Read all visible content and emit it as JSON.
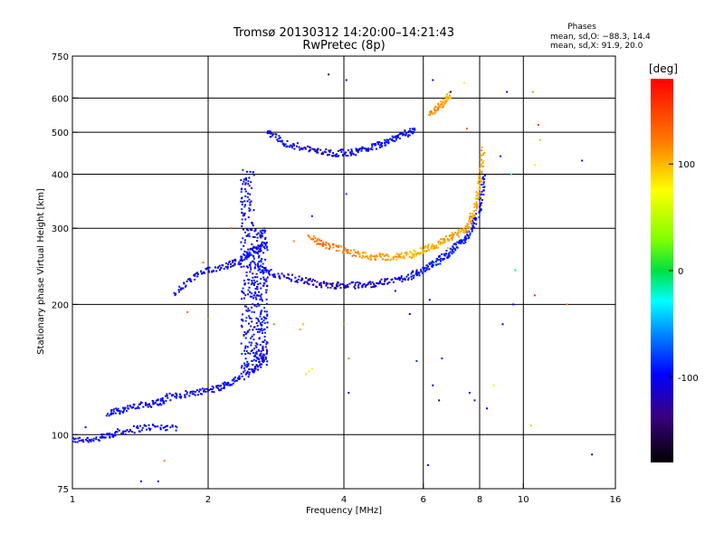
{
  "chart_data": {
    "type": "scatter",
    "title": "Tromsø 20130312 14:20:00–14:21:43",
    "subtitle": "RwPretec (8p)",
    "xlabel": "Frequency [MHz]",
    "ylabel": "Stationary phase Virtual Height [km]",
    "x_scale": "log",
    "y_scale": "log",
    "xlim": [
      1,
      16
    ],
    "ylim": [
      75,
      750
    ],
    "x_ticks": [
      1,
      2,
      4,
      6,
      8,
      10,
      16
    ],
    "x_tick_labels": [
      "1",
      "2",
      "4",
      "6",
      "8",
      "10",
      "16"
    ],
    "y_ticks": [
      75,
      100,
      200,
      300,
      400,
      500,
      600,
      750
    ],
    "y_tick_labels": [
      "75",
      "100",
      "200",
      "300",
      "400",
      "500",
      "600",
      "750"
    ],
    "grid_x": [
      2,
      4,
      6,
      8,
      10
    ],
    "grid_y": [
      100,
      200,
      300,
      400,
      500,
      600
    ],
    "stats": {
      "heading": "Phases",
      "line_o": "mean, sd,O: −88.3, 14.4",
      "line_x": "mean, sd,X:  91.9, 20.0"
    },
    "colorbar": {
      "label": "[deg]",
      "min": -180,
      "max": 180,
      "ticks": [
        100,
        0,
        -100
      ],
      "tick_labels": [
        "100",
        "0",
        "-100"
      ]
    },
    "traces": [
      {
        "seg": [
          [
            1.0,
            97,
            -110
          ],
          [
            1.15,
            98,
            -100
          ],
          [
            1.25,
            101,
            -105
          ],
          [
            1.45,
            104,
            -100
          ],
          [
            1.72,
            104,
            -95
          ]
        ]
      },
      {
        "seg": [
          [
            1.2,
            112,
            -100
          ],
          [
            1.32,
            115,
            -95
          ],
          [
            1.5,
            118,
            -100
          ],
          [
            1.62,
            120,
            -95
          ]
        ]
      },
      {
        "seg": [
          [
            1.62,
            122,
            -105
          ],
          [
            1.85,
            125,
            -100
          ],
          [
            2.1,
            128,
            -100
          ],
          [
            2.25,
            132,
            -95
          ],
          [
            2.5,
            140,
            -100
          ],
          [
            2.7,
            150,
            -95
          ]
        ]
      },
      {
        "seg": [
          [
            1.68,
            212,
            -100
          ],
          [
            1.9,
            235,
            -95
          ],
          [
            2.15,
            245,
            -105
          ],
          [
            2.35,
            252,
            -100
          ],
          [
            2.5,
            265,
            -95
          ],
          [
            2.7,
            275,
            -100
          ]
        ]
      },
      {
        "seg": [
          [
            2.5,
            248,
            -95
          ],
          [
            2.8,
            235,
            -100
          ],
          [
            3.2,
            228,
            -110
          ],
          [
            3.6,
            222,
            -120
          ],
          [
            4.0,
            221,
            -120
          ],
          [
            4.5,
            222,
            -110
          ],
          [
            5.0,
            226,
            -105
          ],
          [
            5.6,
            232,
            -100
          ],
          [
            6.0,
            240,
            -95
          ],
          [
            6.4,
            250,
            -90
          ],
          [
            6.8,
            262,
            -90
          ],
          [
            7.2,
            275,
            -95
          ],
          [
            7.6,
            292,
            -95
          ],
          [
            8.0,
            330,
            -100
          ],
          [
            8.2,
            400,
            -95
          ]
        ]
      },
      {
        "seg": [
          [
            3.35,
            285,
            120
          ],
          [
            3.7,
            273,
            130
          ],
          [
            4.1,
            264,
            120
          ],
          [
            4.6,
            258,
            110
          ],
          [
            5.1,
            257,
            110
          ],
          [
            5.6,
            260,
            100
          ],
          [
            6.0,
            267,
            100
          ],
          [
            6.5,
            276,
            105
          ],
          [
            7.0,
            288,
            110
          ],
          [
            7.5,
            300,
            105
          ],
          [
            7.8,
            330,
            110
          ],
          [
            8.0,
            380,
            100
          ],
          [
            8.15,
            460,
            110
          ]
        ]
      },
      {
        "seg": [
          [
            2.7,
            500,
            -100
          ],
          [
            3.0,
            470,
            -105
          ],
          [
            3.4,
            455,
            -110
          ],
          [
            3.8,
            447,
            -110
          ],
          [
            4.2,
            450,
            -105
          ],
          [
            4.6,
            462,
            -100
          ],
          [
            5.0,
            478,
            -95
          ],
          [
            5.4,
            492,
            -95
          ],
          [
            5.8,
            508,
            -90
          ]
        ]
      },
      {
        "seg": [
          [
            6.2,
            550,
            120
          ],
          [
            6.6,
            580,
            110
          ],
          [
            6.9,
            610,
            100
          ]
        ]
      }
    ],
    "clusters": [
      {
        "x": 2.45,
        "y0": 140,
        "y1": 410,
        "phase": -100
      },
      {
        "x": 2.62,
        "y0": 145,
        "y1": 300,
        "phase": -100
      }
    ],
    "scatter": [
      [
        3.7,
        680,
        -120
      ],
      [
        4.05,
        660,
        -110
      ],
      [
        6.3,
        660,
        -100
      ],
      [
        7.4,
        650,
        80
      ],
      [
        6.9,
        620,
        -100
      ],
      [
        10.5,
        620,
        120
      ],
      [
        10.8,
        520,
        150
      ],
      [
        10.9,
        480,
        30
      ],
      [
        9.4,
        400,
        -30
      ],
      [
        4.05,
        360,
        -80
      ],
      [
        3.4,
        320,
        -90
      ],
      [
        3.1,
        280,
        120
      ],
      [
        9.6,
        240,
        -20
      ],
      [
        10.6,
        210,
        160
      ],
      [
        12.5,
        200,
        120
      ],
      [
        4.0,
        180,
        120
      ],
      [
        3.2,
        175,
        110
      ],
      [
        3.25,
        180,
        100
      ],
      [
        3.35,
        140,
        80
      ],
      [
        3.4,
        142,
        70
      ],
      [
        3.3,
        138,
        90
      ],
      [
        6.2,
        205,
        -110
      ],
      [
        6.6,
        150,
        -90
      ],
      [
        6.3,
        130,
        -100
      ],
      [
        5.8,
        148,
        -80
      ],
      [
        4.1,
        125,
        -110
      ],
      [
        6.5,
        120,
        -120
      ],
      [
        7.6,
        125,
        -110
      ],
      [
        7.8,
        120,
        -110
      ],
      [
        8.3,
        115,
        -100
      ],
      [
        8.6,
        130,
        60
      ],
      [
        9.0,
        180,
        -100
      ],
      [
        9.5,
        200,
        -100
      ],
      [
        6.15,
        85,
        -110
      ],
      [
        1.42,
        78,
        -100
      ],
      [
        1.55,
        78,
        -90
      ],
      [
        1.6,
        87,
        120
      ],
      [
        10.4,
        105,
        30
      ],
      [
        14.2,
        90,
        -110
      ],
      [
        13.5,
        430,
        -100
      ],
      [
        1.8,
        192,
        130
      ],
      [
        2.0,
        185,
        120
      ],
      [
        1.95,
        250,
        130
      ],
      [
        2.25,
        300,
        140
      ],
      [
        2.8,
        180,
        120
      ],
      [
        4.4,
        220,
        -110
      ],
      [
        5.2,
        215,
        -100
      ],
      [
        5.6,
        190,
        -100
      ],
      [
        6.8,
        270,
        100
      ],
      [
        7.5,
        510,
        130
      ],
      [
        10.6,
        420,
        60
      ],
      [
        9.2,
        620,
        -100
      ],
      [
        8.9,
        440,
        -90
      ],
      [
        4.1,
        150,
        120
      ],
      [
        1.07,
        104,
        -100
      ]
    ]
  }
}
